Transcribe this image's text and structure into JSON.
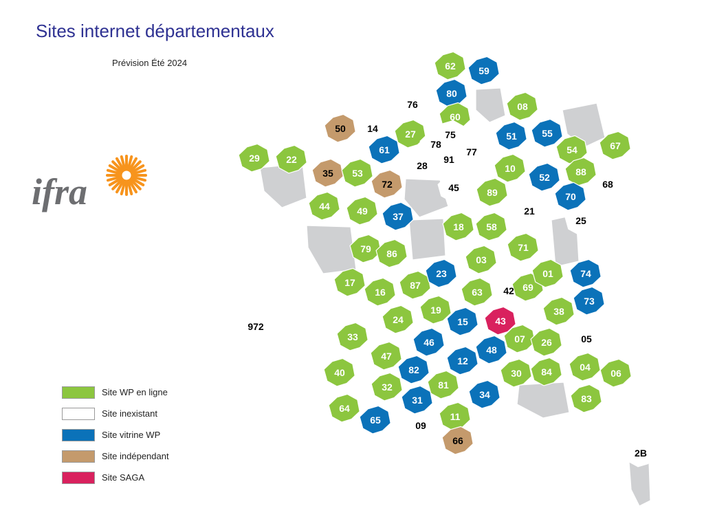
{
  "title": "Sites internet départementaux",
  "subtitle": "Prévision Été 2024",
  "colors": {
    "wp": "#8cc63f",
    "none": "#ffffff",
    "vitrine": "#0b72b9",
    "independant": "#c49a6c",
    "saga": "#d9215e",
    "other": "#cfd0d2"
  },
  "legend": [
    {
      "key": "wp",
      "label": "Site WP en ligne"
    },
    {
      "key": "none",
      "label": "Site inexistant"
    },
    {
      "key": "vitrine",
      "label": "Site vitrine WP"
    },
    {
      "key": "independant",
      "label": "Site indépendant"
    },
    {
      "key": "saga",
      "label": "Site SAGA"
    }
  ],
  "logo": {
    "text": "ifra",
    "icon": "sun-icon"
  },
  "departments": [
    {
      "code": "62",
      "status": "wp"
    },
    {
      "code": "59",
      "status": "vitrine"
    },
    {
      "code": "80",
      "status": "vitrine"
    },
    {
      "code": "76",
      "status": "none"
    },
    {
      "code": "60",
      "status": "wp"
    },
    {
      "code": "08",
      "status": "wp"
    },
    {
      "code": "50",
      "status": "independant"
    },
    {
      "code": "14",
      "status": "none"
    },
    {
      "code": "27",
      "status": "wp"
    },
    {
      "code": "75",
      "status": "none"
    },
    {
      "code": "78",
      "status": "none"
    },
    {
      "code": "77",
      "status": "none"
    },
    {
      "code": "91",
      "status": "none"
    },
    {
      "code": "51",
      "status": "vitrine"
    },
    {
      "code": "55",
      "status": "vitrine"
    },
    {
      "code": "54",
      "status": "wp"
    },
    {
      "code": "67",
      "status": "wp"
    },
    {
      "code": "29",
      "status": "wp"
    },
    {
      "code": "22",
      "status": "wp"
    },
    {
      "code": "35",
      "status": "independant"
    },
    {
      "code": "53",
      "status": "wp"
    },
    {
      "code": "61",
      "status": "vitrine"
    },
    {
      "code": "72",
      "status": "independant"
    },
    {
      "code": "28",
      "status": "none"
    },
    {
      "code": "45",
      "status": "none"
    },
    {
      "code": "10",
      "status": "wp"
    },
    {
      "code": "52",
      "status": "vitrine"
    },
    {
      "code": "88",
      "status": "wp"
    },
    {
      "code": "68",
      "status": "none"
    },
    {
      "code": "44",
      "status": "wp"
    },
    {
      "code": "49",
      "status": "wp"
    },
    {
      "code": "37",
      "status": "vitrine"
    },
    {
      "code": "89",
      "status": "wp"
    },
    {
      "code": "21",
      "status": "none"
    },
    {
      "code": "70",
      "status": "vitrine"
    },
    {
      "code": "25",
      "status": "none"
    },
    {
      "code": "18",
      "status": "wp"
    },
    {
      "code": "58",
      "status": "wp"
    },
    {
      "code": "79",
      "status": "wp"
    },
    {
      "code": "86",
      "status": "wp"
    },
    {
      "code": "71",
      "status": "wp"
    },
    {
      "code": "03",
      "status": "wp"
    },
    {
      "code": "17",
      "status": "wp"
    },
    {
      "code": "16",
      "status": "wp"
    },
    {
      "code": "87",
      "status": "wp"
    },
    {
      "code": "23",
      "status": "vitrine"
    },
    {
      "code": "63",
      "status": "wp"
    },
    {
      "code": "42",
      "status": "none"
    },
    {
      "code": "69",
      "status": "wp"
    },
    {
      "code": "01",
      "status": "wp"
    },
    {
      "code": "74",
      "status": "vitrine"
    },
    {
      "code": "73",
      "status": "vitrine"
    },
    {
      "code": "24",
      "status": "wp"
    },
    {
      "code": "19",
      "status": "wp"
    },
    {
      "code": "15",
      "status": "vitrine"
    },
    {
      "code": "43",
      "status": "saga"
    },
    {
      "code": "38",
      "status": "wp"
    },
    {
      "code": "33",
      "status": "wp"
    },
    {
      "code": "46",
      "status": "vitrine"
    },
    {
      "code": "07",
      "status": "wp"
    },
    {
      "code": "26",
      "status": "wp"
    },
    {
      "code": "05",
      "status": "none"
    },
    {
      "code": "47",
      "status": "wp"
    },
    {
      "code": "12",
      "status": "vitrine"
    },
    {
      "code": "48",
      "status": "vitrine"
    },
    {
      "code": "40",
      "status": "wp"
    },
    {
      "code": "82",
      "status": "vitrine"
    },
    {
      "code": "81",
      "status": "wp"
    },
    {
      "code": "30",
      "status": "wp"
    },
    {
      "code": "84",
      "status": "wp"
    },
    {
      "code": "04",
      "status": "wp"
    },
    {
      "code": "06",
      "status": "wp"
    },
    {
      "code": "32",
      "status": "wp"
    },
    {
      "code": "34",
      "status": "vitrine"
    },
    {
      "code": "83",
      "status": "wp"
    },
    {
      "code": "64",
      "status": "wp"
    },
    {
      "code": "65",
      "status": "vitrine"
    },
    {
      "code": "31",
      "status": "vitrine"
    },
    {
      "code": "09",
      "status": "none"
    },
    {
      "code": "11",
      "status": "wp"
    },
    {
      "code": "66",
      "status": "independant"
    },
    {
      "code": "972",
      "status": "none"
    },
    {
      "code": "2B",
      "status": "none"
    }
  ]
}
